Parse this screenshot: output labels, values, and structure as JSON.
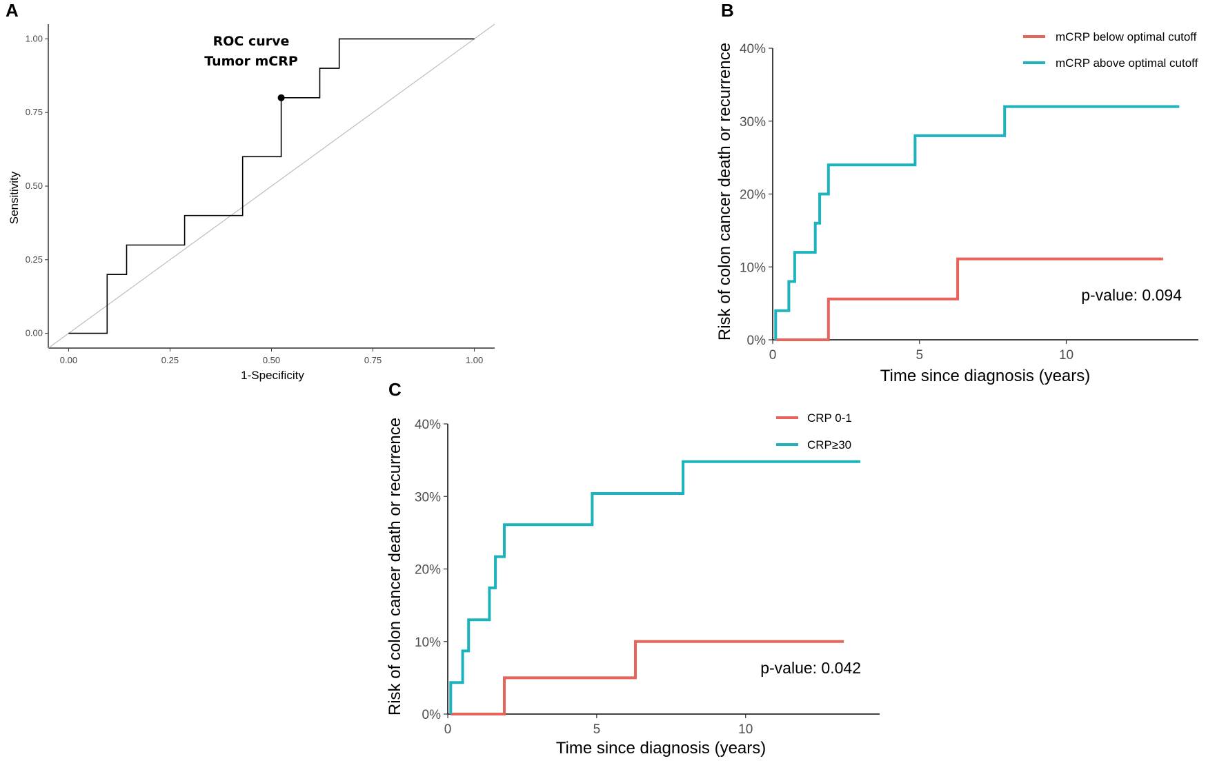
{
  "colors": {
    "red": "#e8635a",
    "teal": "#1cb3bc",
    "diagonal": "#bdbdbd",
    "roc_line": "#000000",
    "axis": "#000000"
  },
  "chart_data": [
    {
      "panel": "A",
      "type": "line",
      "title": "ROC curve",
      "subtitle": "Tumor mCRP",
      "xlabel": "1-Specificity",
      "ylabel": "Sensitivity",
      "xlim": [
        -0.05,
        1.05
      ],
      "ylim": [
        -0.05,
        1.05
      ],
      "xticks": [
        0,
        0.25,
        0.5,
        0.75,
        1
      ],
      "xtick_labels": [
        "0.00",
        "0.25",
        "0.50",
        "0.75",
        "1.00"
      ],
      "yticks": [
        0,
        0.25,
        0.5,
        0.75,
        1
      ],
      "ytick_labels": [
        "0.00",
        "0.25",
        "0.50",
        "0.75",
        "1.00"
      ],
      "diagonal": true,
      "roc": [
        [
          0,
          0
        ],
        [
          0.095,
          0
        ],
        [
          0.095,
          0.2
        ],
        [
          0.143,
          0.2
        ],
        [
          0.143,
          0.3
        ],
        [
          0.286,
          0.3
        ],
        [
          0.286,
          0.4
        ],
        [
          0.429,
          0.4
        ],
        [
          0.429,
          0.6
        ],
        [
          0.524,
          0.6
        ],
        [
          0.524,
          0.8
        ],
        [
          0.619,
          0.8
        ],
        [
          0.619,
          0.9
        ],
        [
          0.667,
          0.9
        ],
        [
          0.667,
          1.0
        ],
        [
          1.0,
          1.0
        ]
      ],
      "optimal_point": [
        0.524,
        0.8
      ]
    },
    {
      "panel": "B",
      "type": "line",
      "xlabel": "Time since diagnosis (years)",
      "ylabel": "Risk of colon cancer death or recurrence",
      "xlim": [
        0,
        14.5
      ],
      "ylim": [
        0,
        40
      ],
      "xticks": [
        0,
        5,
        10
      ],
      "xtick_labels": [
        "0",
        "5",
        "10"
      ],
      "yticks": [
        0,
        10,
        20,
        30,
        40
      ],
      "ytick_labels": [
        "0%",
        "10%",
        "20%",
        "30%",
        "40%"
      ],
      "legend": "top-right",
      "annotation": "p-value: 0.094",
      "series": [
        {
          "name": "mCRP below optimal cutoff",
          "color": "red",
          "steps": [
            [
              0.1,
              0
            ],
            [
              1.9,
              0
            ],
            [
              1.9,
              5.6
            ],
            [
              6.3,
              5.6
            ],
            [
              6.3,
              11.1
            ],
            [
              13.3,
              11.1
            ]
          ]
        },
        {
          "name": "mCRP above optimal cutoff",
          "color": "teal",
          "steps": [
            [
              0.1,
              0
            ],
            [
              0.1,
              4
            ],
            [
              0.55,
              4
            ],
            [
              0.55,
              8
            ],
            [
              0.75,
              8
            ],
            [
              0.75,
              12
            ],
            [
              1.45,
              12
            ],
            [
              1.45,
              16
            ],
            [
              1.6,
              16
            ],
            [
              1.6,
              20
            ],
            [
              1.9,
              20
            ],
            [
              1.9,
              24
            ],
            [
              4.85,
              24
            ],
            [
              4.85,
              28
            ],
            [
              7.9,
              28
            ],
            [
              7.9,
              32
            ],
            [
              13.85,
              32
            ]
          ]
        }
      ]
    },
    {
      "panel": "C",
      "type": "line",
      "xlabel": "Time since diagnosis (years)",
      "ylabel": "Risk of colon cancer death or recurrence",
      "xlim": [
        0,
        14.5
      ],
      "ylim": [
        0,
        40
      ],
      "xticks": [
        0,
        5,
        10
      ],
      "xtick_labels": [
        "0",
        "5",
        "10"
      ],
      "yticks": [
        0,
        10,
        20,
        30,
        40
      ],
      "ytick_labels": [
        "0%",
        "10%",
        "20%",
        "30%",
        "40%"
      ],
      "legend": "top-right",
      "annotation": "p-value: 0.042",
      "series": [
        {
          "name": "CRP 0-1",
          "color": "red",
          "steps": [
            [
              0.1,
              0
            ],
            [
              1.9,
              0
            ],
            [
              1.9,
              5
            ],
            [
              6.3,
              5
            ],
            [
              6.3,
              10
            ],
            [
              13.3,
              10
            ]
          ]
        },
        {
          "name": "CRP≥30",
          "color": "teal",
          "steps": [
            [
              0.1,
              0
            ],
            [
              0.1,
              4.35
            ],
            [
              0.5,
              4.35
            ],
            [
              0.5,
              8.7
            ],
            [
              0.7,
              8.7
            ],
            [
              0.7,
              13
            ],
            [
              1.4,
              13
            ],
            [
              1.4,
              17.4
            ],
            [
              1.6,
              17.4
            ],
            [
              1.6,
              21.7
            ],
            [
              1.9,
              21.7
            ],
            [
              1.9,
              26.1
            ],
            [
              4.85,
              26.1
            ],
            [
              4.85,
              30.4
            ],
            [
              7.9,
              30.4
            ],
            [
              7.9,
              34.8
            ],
            [
              13.85,
              34.8
            ]
          ]
        }
      ]
    }
  ]
}
